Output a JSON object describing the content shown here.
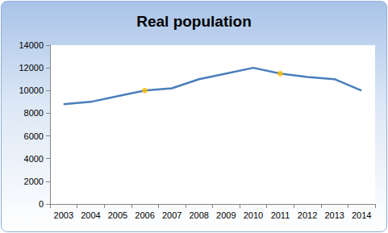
{
  "chart_data": {
    "type": "line",
    "title": "Real population",
    "categories": [
      "2003",
      "2004",
      "2005",
      "2006",
      "2007",
      "2008",
      "2009",
      "2010",
      "2011",
      "2012",
      "2013",
      "2014"
    ],
    "series": [
      {
        "type": "line",
        "color": "#4a7ebb",
        "values": [
          8800,
          9000,
          9500,
          10000,
          10200,
          11000,
          11500,
          12000,
          11500,
          11200,
          11000,
          10000
        ]
      },
      {
        "type": "scatter",
        "color": "#ffc000",
        "marker": "circle",
        "values": [
          null,
          null,
          null,
          10000,
          null,
          null,
          null,
          null,
          11500,
          null,
          null,
          null
        ]
      }
    ],
    "ylim": [
      0,
      14000
    ],
    "yticks": [
      0,
      2000,
      4000,
      6000,
      8000,
      10000,
      12000,
      14000
    ],
    "grid": false,
    "legend": false
  }
}
